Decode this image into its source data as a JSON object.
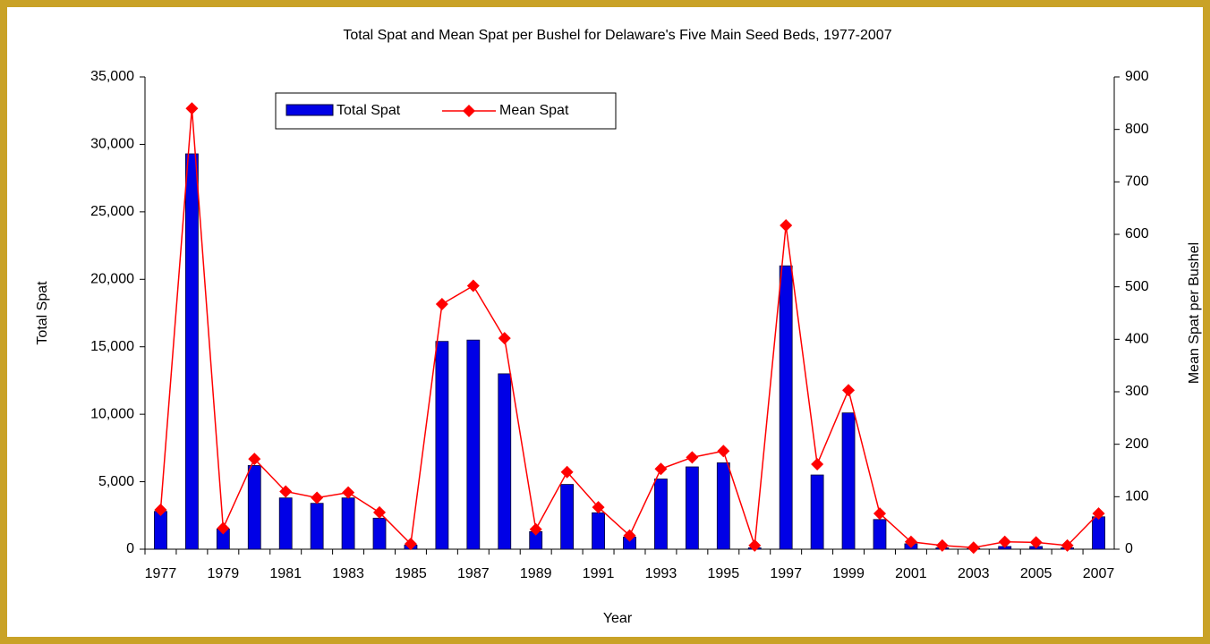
{
  "chart_data": {
    "type": "bar_line",
    "title": "Total Spat and Mean Spat per Bushel for Delaware's Five Main Seed Beds, 1977-2007",
    "x_label": "Year",
    "y_label": "Total Spat",
    "y2_label": "Mean Spat per Bushel",
    "categories": [
      "1977",
      null,
      "1979",
      null,
      "1981",
      null,
      "1983",
      null,
      "1985",
      null,
      "1987",
      null,
      "1989",
      null,
      "1991",
      null,
      "1993",
      null,
      "1995",
      null,
      "1997",
      null,
      "1999",
      null,
      "2001",
      null,
      "2003",
      null,
      "2005",
      null,
      "2007"
    ],
    "series": [
      {
        "name": "Total Spat",
        "type": "bar",
        "color": "#0000e6",
        "values": [
          2800,
          29300,
          1500,
          6200,
          3800,
          3400,
          3800,
          2300,
          300,
          15400,
          15500,
          13000,
          1300,
          4800,
          2700,
          900,
          5200,
          6100,
          6400,
          100,
          21000,
          5500,
          10100,
          2200,
          400,
          100,
          50,
          200,
          200,
          100,
          2400
        ]
      },
      {
        "name": "Mean Spat",
        "type": "line",
        "axis": "y2",
        "color": "#ff0000",
        "values": [
          75,
          840,
          40,
          172,
          110,
          98,
          108,
          70,
          10,
          467,
          502,
          402,
          38,
          147,
          80,
          26,
          153,
          175,
          187,
          7,
          617,
          162,
          303,
          68,
          14,
          7,
          3,
          14,
          13,
          7,
          68
        ]
      }
    ],
    "ylim": [
      0,
      35000
    ],
    "yticks": [
      0,
      {
        "value": 5000,
        "label": "5,000"
      },
      {
        "value": 10000,
        "label": "10,000"
      },
      {
        "value": 15000,
        "label": "15,000"
      },
      {
        "value": 20000,
        "label": "20,000"
      },
      {
        "value": 25000,
        "label": "25,000"
      },
      {
        "value": 30000,
        "label": "30,000"
      },
      {
        "value": 35000,
        "label": "35,000"
      }
    ],
    "y2lim": [
      0,
      900
    ],
    "y2ticks": [
      0,
      100,
      200,
      300,
      400,
      500,
      600,
      700,
      800,
      900
    ],
    "legend": "top"
  }
}
